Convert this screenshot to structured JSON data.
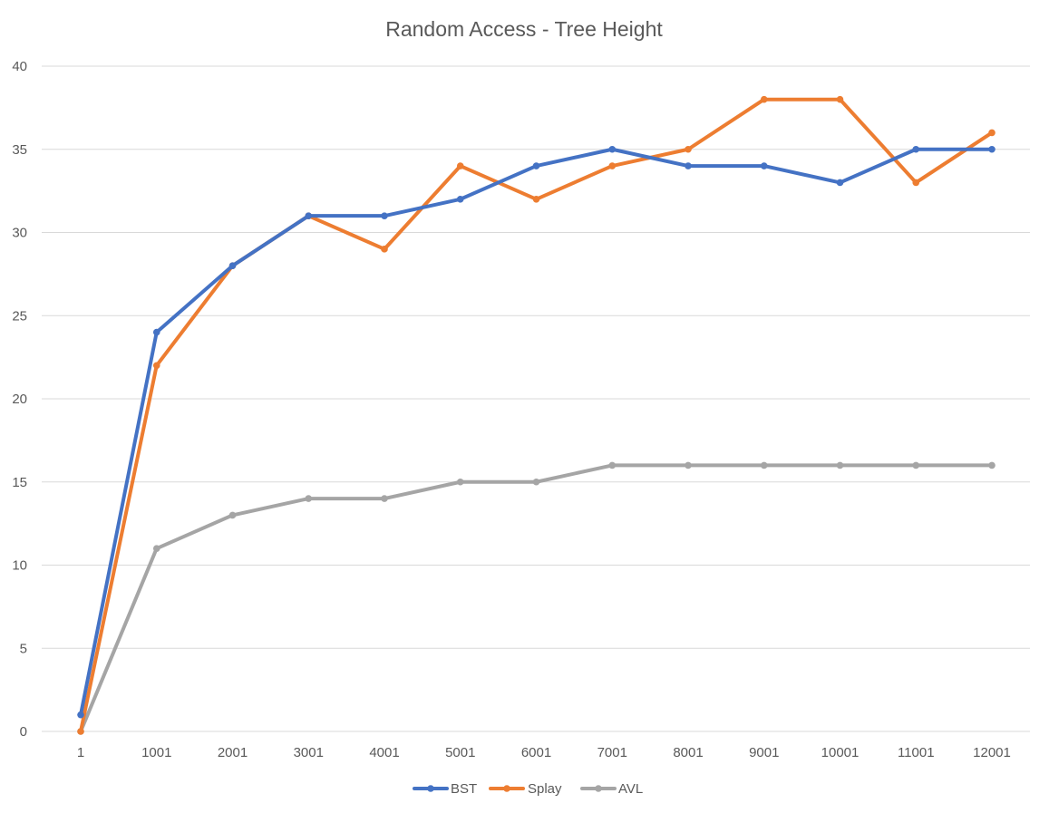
{
  "chart_data": {
    "type": "line",
    "title": "Random Access - Tree Height",
    "xlabel": "",
    "ylabel": "",
    "categories": [
      "1",
      "1001",
      "2001",
      "3001",
      "4001",
      "5001",
      "6001",
      "7001",
      "8001",
      "9001",
      "10001",
      "11001",
      "12001"
    ],
    "ylim": [
      0,
      40
    ],
    "yticks": [
      0,
      5,
      10,
      15,
      20,
      25,
      30,
      35,
      40
    ],
    "grid": true,
    "legend_position": "bottom",
    "series": [
      {
        "name": "BST",
        "color": "#4472c4",
        "values": [
          1,
          24,
          28,
          31,
          31,
          32,
          34,
          35,
          34,
          34,
          33,
          35,
          35
        ]
      },
      {
        "name": "Splay",
        "color": "#ed7d31",
        "values": [
          0,
          22,
          28,
          31,
          29,
          34,
          32,
          34,
          35,
          38,
          38,
          33,
          36
        ]
      },
      {
        "name": "AVL",
        "color": "#a5a5a5",
        "values": [
          0,
          11,
          13,
          14,
          14,
          15,
          15,
          16,
          16,
          16,
          16,
          16,
          16
        ]
      }
    ]
  }
}
